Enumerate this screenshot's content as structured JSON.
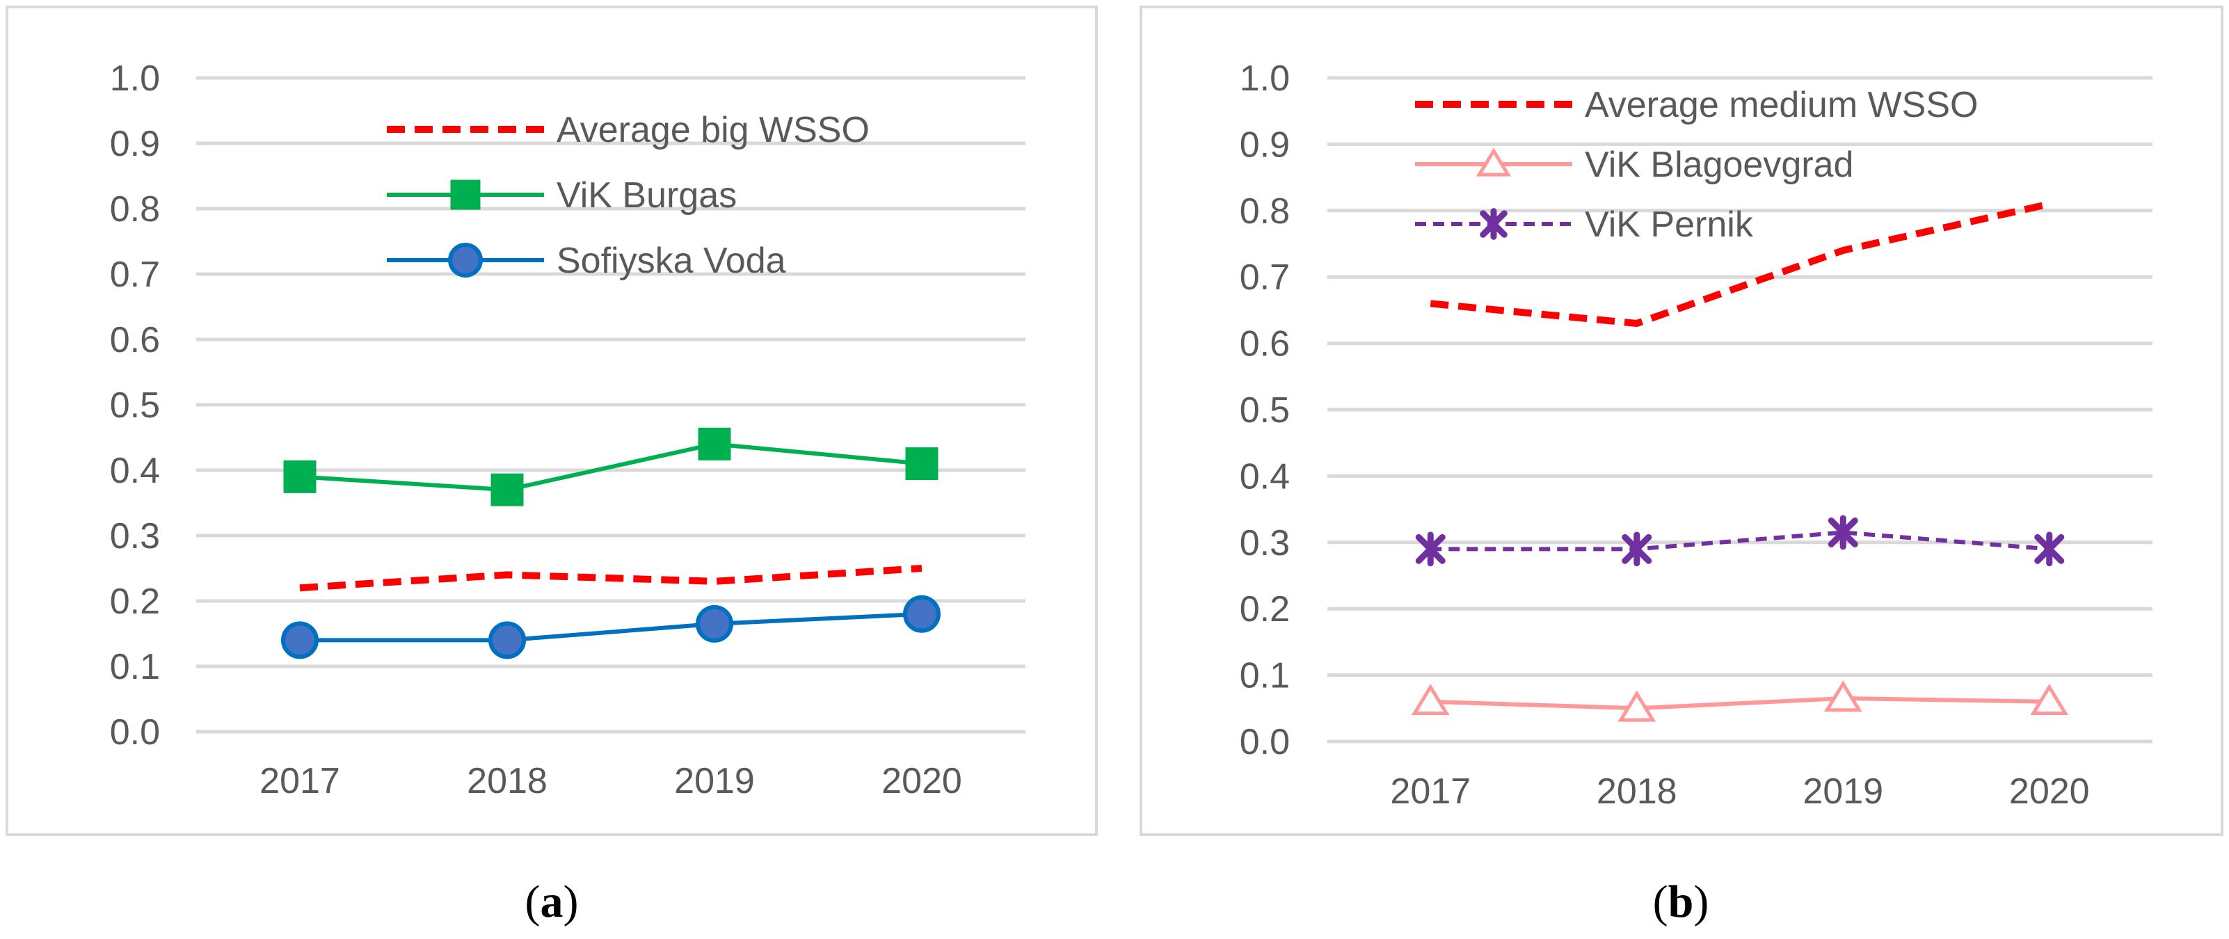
{
  "colors": {
    "grid": "#d9d9d9",
    "frame": "#d9d9d9",
    "tick_text": "#595959",
    "red": "#ff0000",
    "green": "#00b050",
    "blue": "#0070c0",
    "pink": "#ff9999",
    "purple": "#7030a0"
  },
  "chart_data": [
    {
      "type": "line",
      "caption": {
        "open": "(",
        "letter": "a",
        "close": ")"
      },
      "categories": [
        "2017",
        "2018",
        "2019",
        "2020"
      ],
      "yticks": [
        "0.0",
        "0.1",
        "0.2",
        "0.3",
        "0.4",
        "0.5",
        "0.6",
        "0.7",
        "0.8",
        "0.9",
        "1.0"
      ],
      "ylim": [
        0,
        1.0
      ],
      "grid": true,
      "legend_position": "top-right",
      "series": [
        {
          "name": "Average big WSSO",
          "values": [
            0.22,
            0.24,
            0.23,
            0.25
          ],
          "color": "#ff0000",
          "dash": true,
          "marker": "none"
        },
        {
          "name": "ViK Burgas",
          "values": [
            0.39,
            0.37,
            0.44,
            0.41
          ],
          "color": "#00b050",
          "dash": false,
          "marker": "square"
        },
        {
          "name": "Sofiyska Voda",
          "values": [
            0.14,
            0.14,
            0.165,
            0.18
          ],
          "color": "#0070c0",
          "dash": false,
          "marker": "circle"
        }
      ]
    },
    {
      "type": "line",
      "caption": {
        "open": "(",
        "letter": "b",
        "close": ")"
      },
      "categories": [
        "2017",
        "2018",
        "2019",
        "2020"
      ],
      "yticks": [
        "0.0",
        "0.1",
        "0.2",
        "0.3",
        "0.4",
        "0.5",
        "0.6",
        "0.7",
        "0.8",
        "0.9",
        "1.0"
      ],
      "ylim": [
        0,
        1.0
      ],
      "grid": true,
      "legend_position": "top",
      "series": [
        {
          "name": "Average medium WSSO",
          "values": [
            0.66,
            0.63,
            0.74,
            0.81
          ],
          "color": "#ff0000",
          "dash": true,
          "marker": "none"
        },
        {
          "name": "ViK Blagoevgrad",
          "values": [
            0.06,
            0.05,
            0.065,
            0.06
          ],
          "color": "#ff9999",
          "dash": false,
          "marker": "triangle"
        },
        {
          "name": "ViK Pernik",
          "values": [
            0.29,
            0.29,
            0.315,
            0.29
          ],
          "color": "#7030a0",
          "dash": true,
          "marker": "asterisk"
        }
      ]
    }
  ]
}
